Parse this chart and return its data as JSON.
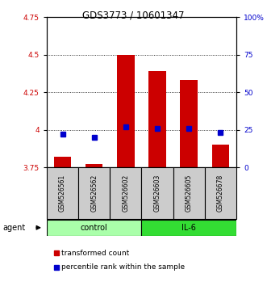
{
  "title": "GDS3773 / 10601347",
  "samples": [
    "GSM526561",
    "GSM526562",
    "GSM526602",
    "GSM526603",
    "GSM526605",
    "GSM526678"
  ],
  "red_values": [
    3.82,
    3.77,
    4.5,
    4.39,
    4.33,
    3.9
  ],
  "blue_values_pct": [
    22,
    20,
    27,
    26,
    26,
    23
  ],
  "ylim_left": [
    3.75,
    4.75
  ],
  "ylim_right": [
    0,
    100
  ],
  "yticks_left": [
    3.75,
    4.0,
    4.25,
    4.5,
    4.75
  ],
  "yticks_right": [
    0,
    25,
    50,
    75,
    100
  ],
  "ytick_labels_left": [
    "3.75",
    "4",
    "4.25",
    "4.5",
    "4.75"
  ],
  "ytick_labels_right": [
    "0",
    "25",
    "50",
    "75",
    "100%"
  ],
  "red_base": 3.75,
  "red_color": "#cc0000",
  "blue_color": "#0000cc",
  "control_color": "#aaffaa",
  "il6_color": "#33dd33",
  "label_area_color": "#cccccc",
  "legend_red_label": "transformed count",
  "legend_blue_label": "percentile rank within the sample",
  "gridlines": [
    4.0,
    4.25,
    4.5
  ]
}
